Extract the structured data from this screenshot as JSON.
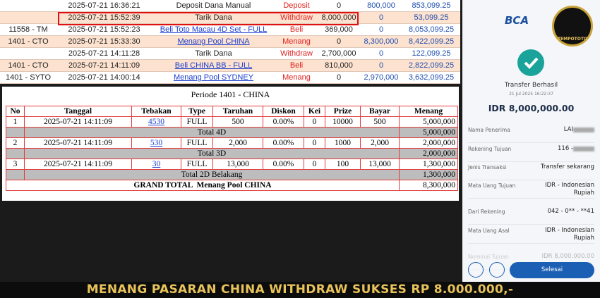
{
  "transactions": {
    "rows": [
      [
        "",
        "2025-07-21 16:36:21",
        "Deposit Dana Manual",
        "Deposit",
        "0",
        "800,000",
        "853,099.25"
      ],
      [
        "",
        "2025-07-21 15:52:39",
        "Tarik Dana",
        "Withdraw",
        "8,000,000",
        "0",
        "53,099.25"
      ],
      [
        "11558 - TM",
        "2025-07-21 15:52:23",
        "Beli Toto Macau 4D Set - FULL",
        "Beli",
        "369,000",
        "0",
        "8,053,099.25"
      ],
      [
        "1401 - CTO",
        "2025-07-21 15:33:30",
        "Menang Pool CHINA",
        "Menang",
        "0",
        "8,300,000",
        "8,422,099.25"
      ],
      [
        "",
        "2025-07-21 14:11:28",
        "Tarik Dana",
        "Withdraw",
        "2,700,000",
        "0",
        "122,099.25"
      ],
      [
        "1401 - CTO",
        "2025-07-21 14:11:09",
        "Beli CHINA BB - FULL",
        "Beli",
        "810,000",
        "0",
        "2,822,099.25"
      ],
      [
        "1401 - SYTO",
        "2025-07-21 14:00:14",
        "Menang Pool SYDNEY",
        "Menang",
        "0",
        "2,970,000",
        "3,632,099.25"
      ]
    ]
  },
  "periode": {
    "title": "Periode 1401 - CHINA",
    "headers": [
      "No",
      "Tanggal",
      "Tebakan",
      "Type",
      "Taruhan",
      "Diskon",
      "Kei",
      "Prize",
      "Bayar",
      "Menang"
    ],
    "groups": [
      {
        "row": [
          "1",
          "2025-07-21 14:11:09",
          "4530",
          "FULL",
          "500",
          "0.00%",
          "0",
          "10000",
          "500",
          "5,000,000"
        ],
        "total_label": "Total 4D",
        "total": "5,000,000"
      },
      {
        "row": [
          "2",
          "2025-07-21 14:11:09",
          "530",
          "FULL",
          "2,000",
          "0.00%",
          "0",
          "1000",
          "2,000",
          "2,000,000"
        ],
        "total_label": "Total 3D",
        "total": "2,000,000"
      },
      {
        "row": [
          "3",
          "2025-07-21 14:11:09",
          "30",
          "FULL",
          "13,000",
          "0.00%",
          "0",
          "100",
          "13,000",
          "1,300,000"
        ],
        "total_label": "Total 2D Belakang",
        "total": "1,300,000"
      }
    ],
    "grand_total": {
      "label": "GRAND TOTAL  Menang Pool CHINA",
      "value": "8,300,000"
    }
  },
  "receipt": {
    "bank": "BCA",
    "brand": "TEMPOTOTO",
    "status": "Transfer Berhasil",
    "datetime": "21 Jul 2025 16:22:37",
    "amount": "IDR 8,000,000.00",
    "fields": [
      {
        "label": "Nama Penerima",
        "value": "LAI"
      },
      {
        "label": "Rekening Tujuan",
        "value": "116 -"
      },
      {
        "label": "Jenis Transaksi",
        "value": "Transfer sekarang"
      },
      {
        "label": "Mata Uang Tujuan",
        "value": "IDR - Indonesian Rupiah"
      },
      {
        "label": "Dari Rekening",
        "value": "042 - 0** - **41"
      },
      {
        "label": "Mata Uang Asal",
        "value": "IDR - Indonesian Rupiah"
      },
      {
        "label": "Nominal Tujuan",
        "value": "IDR 8,000,000.00"
      }
    ],
    "button": "Selesai"
  },
  "banner": "MENANG PASARAN CHINA WITHDRAW SUKSES RP 8.000.000,-"
}
